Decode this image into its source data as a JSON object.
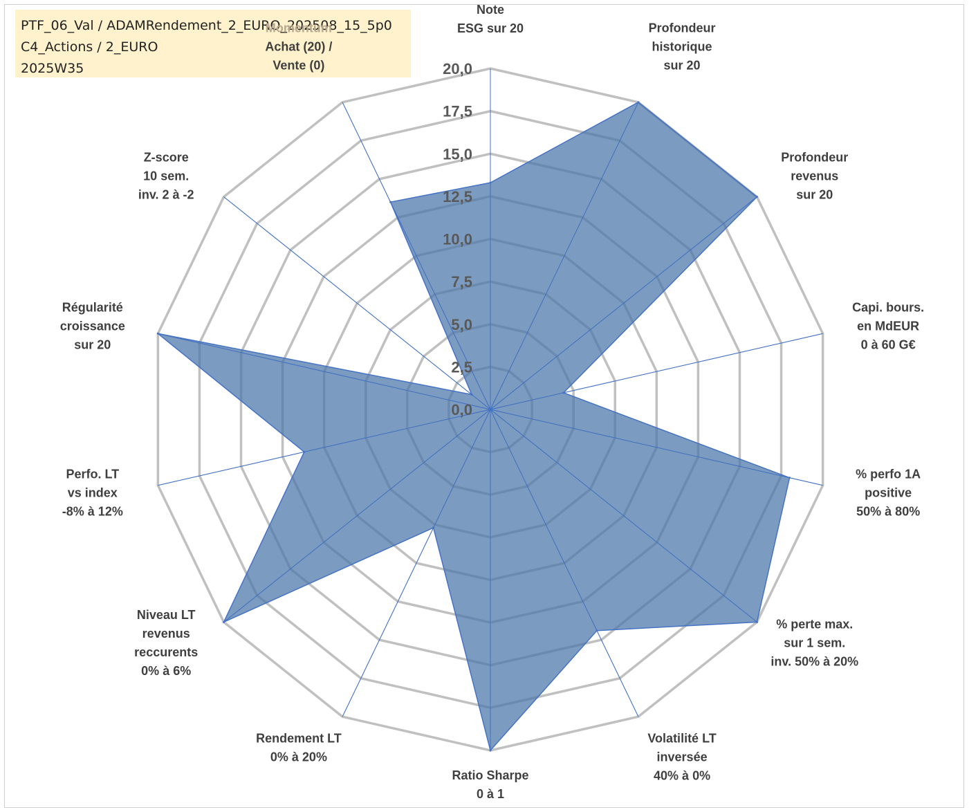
{
  "header": {
    "line1": "PTF_06_Val / ADAMRendement_2_EURO_202508_15_5p0",
    "line2": "C4_Actions / 2_EURO",
    "line3": "2025W35"
  },
  "chart_data": {
    "type": "radar",
    "title": "",
    "rmin": 0,
    "rmax": 20,
    "ticks": [
      "0,0",
      "2,5",
      "5,0",
      "7,5",
      "10,0",
      "12,5",
      "15,0",
      "17,5",
      "20,0"
    ],
    "tick_values": [
      0,
      2.5,
      5,
      7.5,
      10,
      12.5,
      15,
      17.5,
      20
    ],
    "grid": true,
    "colors": {
      "fill": "#4a74a8",
      "fill_opacity": 0.72,
      "stroke": "#4472c4",
      "grid": "#c0c0c0",
      "highlight_label": "#b9a98f"
    },
    "axes": [
      {
        "lines": [
          "Note",
          "ESG sur 20"
        ]
      },
      {
        "lines": [
          "Profondeur",
          "historique",
          "sur 20"
        ]
      },
      {
        "lines": [
          "Profondeur",
          "revenus",
          "sur 20"
        ]
      },
      {
        "lines": [
          "Capi. bours.",
          "en MdEUR",
          "0 à 60 G€"
        ]
      },
      {
        "lines": [
          "% perfo 1A",
          "positive",
          "50% à 80%"
        ]
      },
      {
        "lines": [
          "% perte max.",
          "sur 1 sem.",
          "inv. 50% à 20%"
        ]
      },
      {
        "lines": [
          "Volatilité LT",
          "inversée",
          "40% à 0%"
        ]
      },
      {
        "lines": [
          "Ratio Sharpe",
          "0 à 1"
        ]
      },
      {
        "lines": [
          "Rendement LT",
          "0% à 20%"
        ]
      },
      {
        "lines": [
          "Niveau LT",
          "revenus",
          "reccurents",
          "0% à 6%"
        ]
      },
      {
        "lines": [
          "Perfo. LT",
          "vs index",
          "-8% à 12%"
        ]
      },
      {
        "lines": [
          "Régularité",
          "croissance",
          "sur 20"
        ]
      },
      {
        "lines": [
          "Z-score",
          "10 sem.",
          "inv. 2 à -2"
        ]
      },
      {
        "lines": [
          "Momentum",
          "Achat (20) /",
          "Vente (0)"
        ],
        "highlight_first": true
      }
    ],
    "series": [
      {
        "values": [
          13.3,
          20,
          20,
          4.4,
          18,
          20,
          14.4,
          20,
          7.7,
          20,
          11.2,
          20,
          1.4,
          13.5
        ]
      }
    ]
  }
}
